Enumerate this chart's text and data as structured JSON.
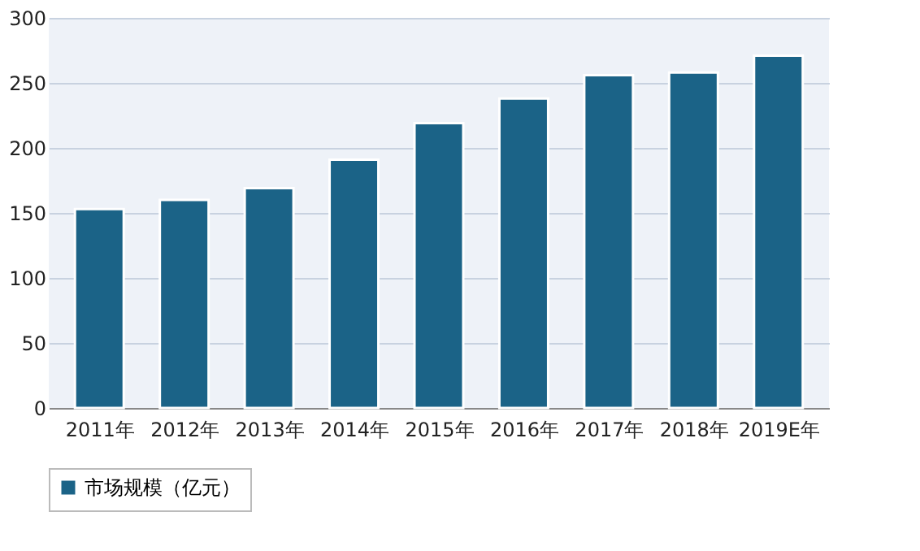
{
  "chart_data": {
    "type": "bar",
    "categories": [
      "2011年",
      "2012年",
      "2013年",
      "2014年",
      "2015年",
      "2016年",
      "2017年",
      "2018年",
      "2019E年"
    ],
    "series": [
      {
        "name": "市场规模（亿元）",
        "color": "#1b6387",
        "values": [
          153,
          160,
          169,
          191,
          219,
          238,
          256,
          258,
          271
        ]
      }
    ],
    "ylim": [
      0,
      300
    ],
    "yticks": [
      0,
      50,
      100,
      150,
      200,
      250,
      300
    ],
    "grid": "y",
    "legend": "bottom"
  }
}
